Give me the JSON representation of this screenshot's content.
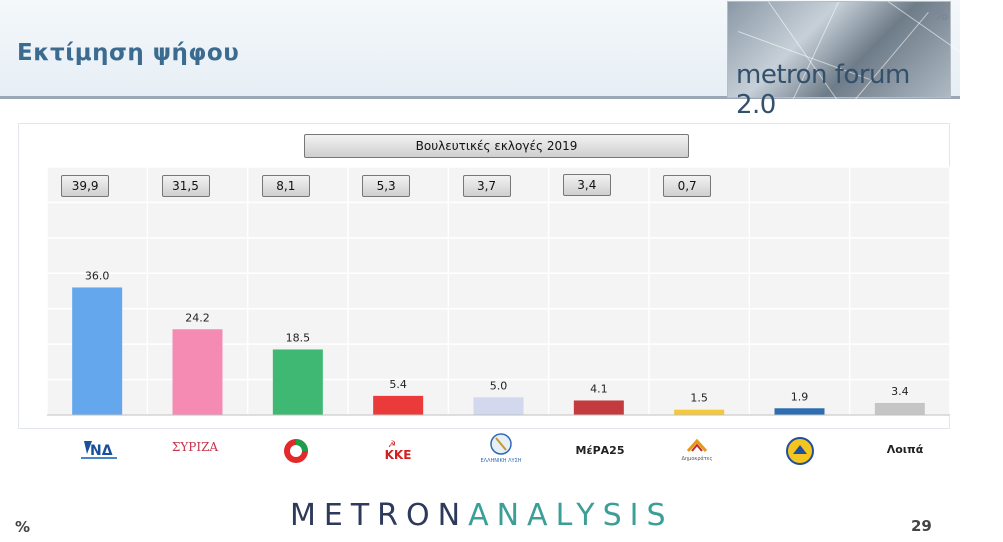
{
  "header": {
    "title": "Εκτίμηση ψήφου",
    "logo_text": "metron forum 2.0",
    "unit_badge": "%"
  },
  "chart_data": {
    "type": "bar",
    "title": "Βουλευτικές εκλογές 2019",
    "categories": [
      "ΝΔ",
      "ΣΥΡΙΖΑ",
      "ΚΙΝΑΛ",
      "ΚΚΕ",
      "ΕΛΛΗΝΙΚΗ ΛΥΣΗ",
      "ΜέΡΑ25",
      "Δημοκράτες",
      "Νίκη",
      "Λοιπά"
    ],
    "values": [
      36.0,
      24.2,
      18.5,
      5.4,
      5.0,
      4.1,
      1.5,
      1.9,
      3.4
    ],
    "value_labels": [
      "36.0",
      "24.2",
      "18.5",
      "5.4",
      "5.0",
      "4.1",
      "1.5",
      "1.9",
      "3.4"
    ],
    "previous_election_labels": [
      "39,9",
      "31,5",
      "8,1",
      "5,3",
      "3,7",
      "3,4",
      "0,7",
      "",
      ""
    ],
    "colors": [
      "#64a7ec",
      "#f58bb3",
      "#3fb873",
      "#eb3a3a",
      "#d2d9ee",
      "#c33b3f",
      "#f5c73a",
      "#2e6db0",
      "#c5c5c5"
    ],
    "ylim": [
      0,
      70
    ],
    "grid": true,
    "xlabel": "",
    "ylabel": ""
  },
  "x_axis_labels": {
    "others": "Λοιπά"
  },
  "logos": {
    "nd": "ΝΔ",
    "syriza": "ΣΥΡΙΖΑ",
    "kke": "ΚΚΕ",
    "ell_lysi": "ΕΛΛΗΝΙΚΗ ΛΥΣΗ",
    "mera25": "ΜέΡΑ25",
    "dimokrates": "Δημοκράτες"
  },
  "footer": {
    "brand_part1": "METRON",
    "brand_part2": "ANALYSIS",
    "unit": "%",
    "page_number": "29"
  }
}
